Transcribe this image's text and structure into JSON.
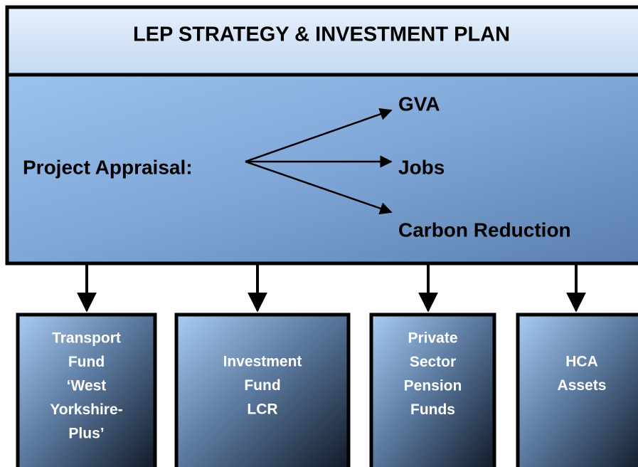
{
  "header": {
    "title": "LEP STRATEGY & INVESTMENT PLAN"
  },
  "appraisal": {
    "label": "Project Appraisal:",
    "outcomes": [
      "GVA",
      "Jobs",
      "Carbon Reduction"
    ]
  },
  "funds": [
    {
      "lines": [
        "Transport",
        "Fund",
        "‘West",
        "Yorkshire-",
        "Plus’"
      ]
    },
    {
      "lines": [
        "Investment",
        "Fund",
        "LCR"
      ]
    },
    {
      "lines": [
        "Private",
        "Sector",
        "Pension",
        "Funds"
      ]
    },
    {
      "lines": [
        "HCA",
        "Assets"
      ]
    }
  ]
}
